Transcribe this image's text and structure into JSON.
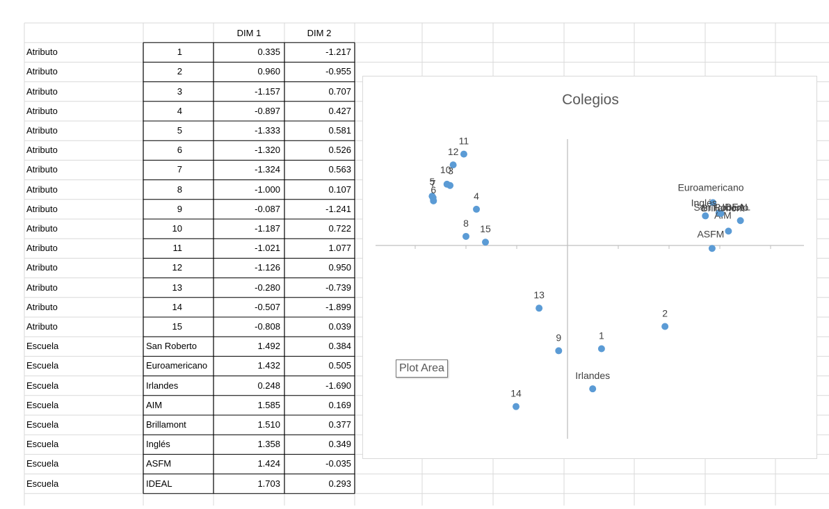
{
  "table": {
    "headers": [
      "",
      "DIM 1",
      "DIM 2"
    ],
    "rows": [
      {
        "category": "Atributo",
        "name": "1",
        "dim1": "0.335",
        "dim2": "-1.217"
      },
      {
        "category": "Atributo",
        "name": "2",
        "dim1": "0.960",
        "dim2": "-0.955"
      },
      {
        "category": "Atributo",
        "name": "3",
        "dim1": "-1.157",
        "dim2": "0.707"
      },
      {
        "category": "Atributo",
        "name": "4",
        "dim1": "-0.897",
        "dim2": "0.427"
      },
      {
        "category": "Atributo",
        "name": "5",
        "dim1": "-1.333",
        "dim2": "0.581"
      },
      {
        "category": "Atributo",
        "name": "6",
        "dim1": "-1.320",
        "dim2": "0.526"
      },
      {
        "category": "Atributo",
        "name": "7",
        "dim1": "-1.324",
        "dim2": "0.563"
      },
      {
        "category": "Atributo",
        "name": "8",
        "dim1": "-1.000",
        "dim2": "0.107"
      },
      {
        "category": "Atributo",
        "name": "9",
        "dim1": "-0.087",
        "dim2": "-1.241"
      },
      {
        "category": "Atributo",
        "name": "10",
        "dim1": "-1.187",
        "dim2": "0.722"
      },
      {
        "category": "Atributo",
        "name": "11",
        "dim1": "-1.021",
        "dim2": "1.077"
      },
      {
        "category": "Atributo",
        "name": "12",
        "dim1": "-1.126",
        "dim2": "0.950"
      },
      {
        "category": "Atributo",
        "name": "13",
        "dim1": "-0.280",
        "dim2": "-0.739"
      },
      {
        "category": "Atributo",
        "name": "14",
        "dim1": "-0.507",
        "dim2": "-1.899"
      },
      {
        "category": "Atributo",
        "name": "15",
        "dim1": "-0.808",
        "dim2": "0.039"
      },
      {
        "category": "Escuela",
        "name": "San Roberto",
        "dim1": "1.492",
        "dim2": "0.384"
      },
      {
        "category": "Escuela",
        "name": "Euroamericano",
        "dim1": "1.432",
        "dim2": "0.505"
      },
      {
        "category": "Escuela",
        "name": "Irlandes",
        "dim1": "0.248",
        "dim2": "-1.690"
      },
      {
        "category": "Escuela",
        "name": "AIM",
        "dim1": "1.585",
        "dim2": "0.169"
      },
      {
        "category": "Escuela",
        "name": "Brillamont",
        "dim1": "1.510",
        "dim2": "0.377"
      },
      {
        "category": "Escuela",
        "name": "Inglés",
        "dim1": "1.358",
        "dim2": "0.349"
      },
      {
        "category": "Escuela",
        "name": "ASFM",
        "dim1": "1.424",
        "dim2": "-0.035"
      },
      {
        "category": "Escuela",
        "name": "IDEAL",
        "dim1": "1.703",
        "dim2": "0.293"
      }
    ]
  },
  "tooltip": "Plot Area",
  "chart_data": {
    "type": "scatter",
    "title": "Colegios",
    "xlabel": "",
    "ylabel": "",
    "grid": false,
    "point_color": "#5b9bd5",
    "points": [
      {
        "label": "1",
        "x": 0.335,
        "y": -1.217
      },
      {
        "label": "2",
        "x": 0.96,
        "y": -0.955
      },
      {
        "label": "3",
        "x": -1.157,
        "y": 0.707
      },
      {
        "label": "4",
        "x": -0.897,
        "y": 0.427
      },
      {
        "label": "5",
        "x": -1.333,
        "y": 0.581
      },
      {
        "label": "6",
        "x": -1.32,
        "y": 0.526
      },
      {
        "label": "7",
        "x": -1.324,
        "y": 0.563
      },
      {
        "label": "8",
        "x": -1.0,
        "y": 0.107
      },
      {
        "label": "9",
        "x": -0.087,
        "y": -1.241
      },
      {
        "label": "10",
        "x": -1.187,
        "y": 0.722
      },
      {
        "label": "11",
        "x": -1.021,
        "y": 1.077
      },
      {
        "label": "12",
        "x": -1.126,
        "y": 0.95
      },
      {
        "label": "13",
        "x": -0.28,
        "y": -0.739
      },
      {
        "label": "14",
        "x": -0.507,
        "y": -1.899
      },
      {
        "label": "15",
        "x": -0.808,
        "y": 0.039
      },
      {
        "label": "San Roberto",
        "x": 1.492,
        "y": 0.384
      },
      {
        "label": "Euroamericano",
        "x": 1.432,
        "y": 0.505
      },
      {
        "label": "Irlandes",
        "x": 0.248,
        "y": -1.69
      },
      {
        "label": "AIM",
        "x": 1.585,
        "y": 0.169
      },
      {
        "label": "Brillamont",
        "x": 1.51,
        "y": 0.377
      },
      {
        "label": "Inglés",
        "x": 1.358,
        "y": 0.349
      },
      {
        "label": "ASFM",
        "x": 1.424,
        "y": -0.035
      },
      {
        "label": "IDEAL",
        "x": 1.703,
        "y": 0.293
      }
    ]
  }
}
